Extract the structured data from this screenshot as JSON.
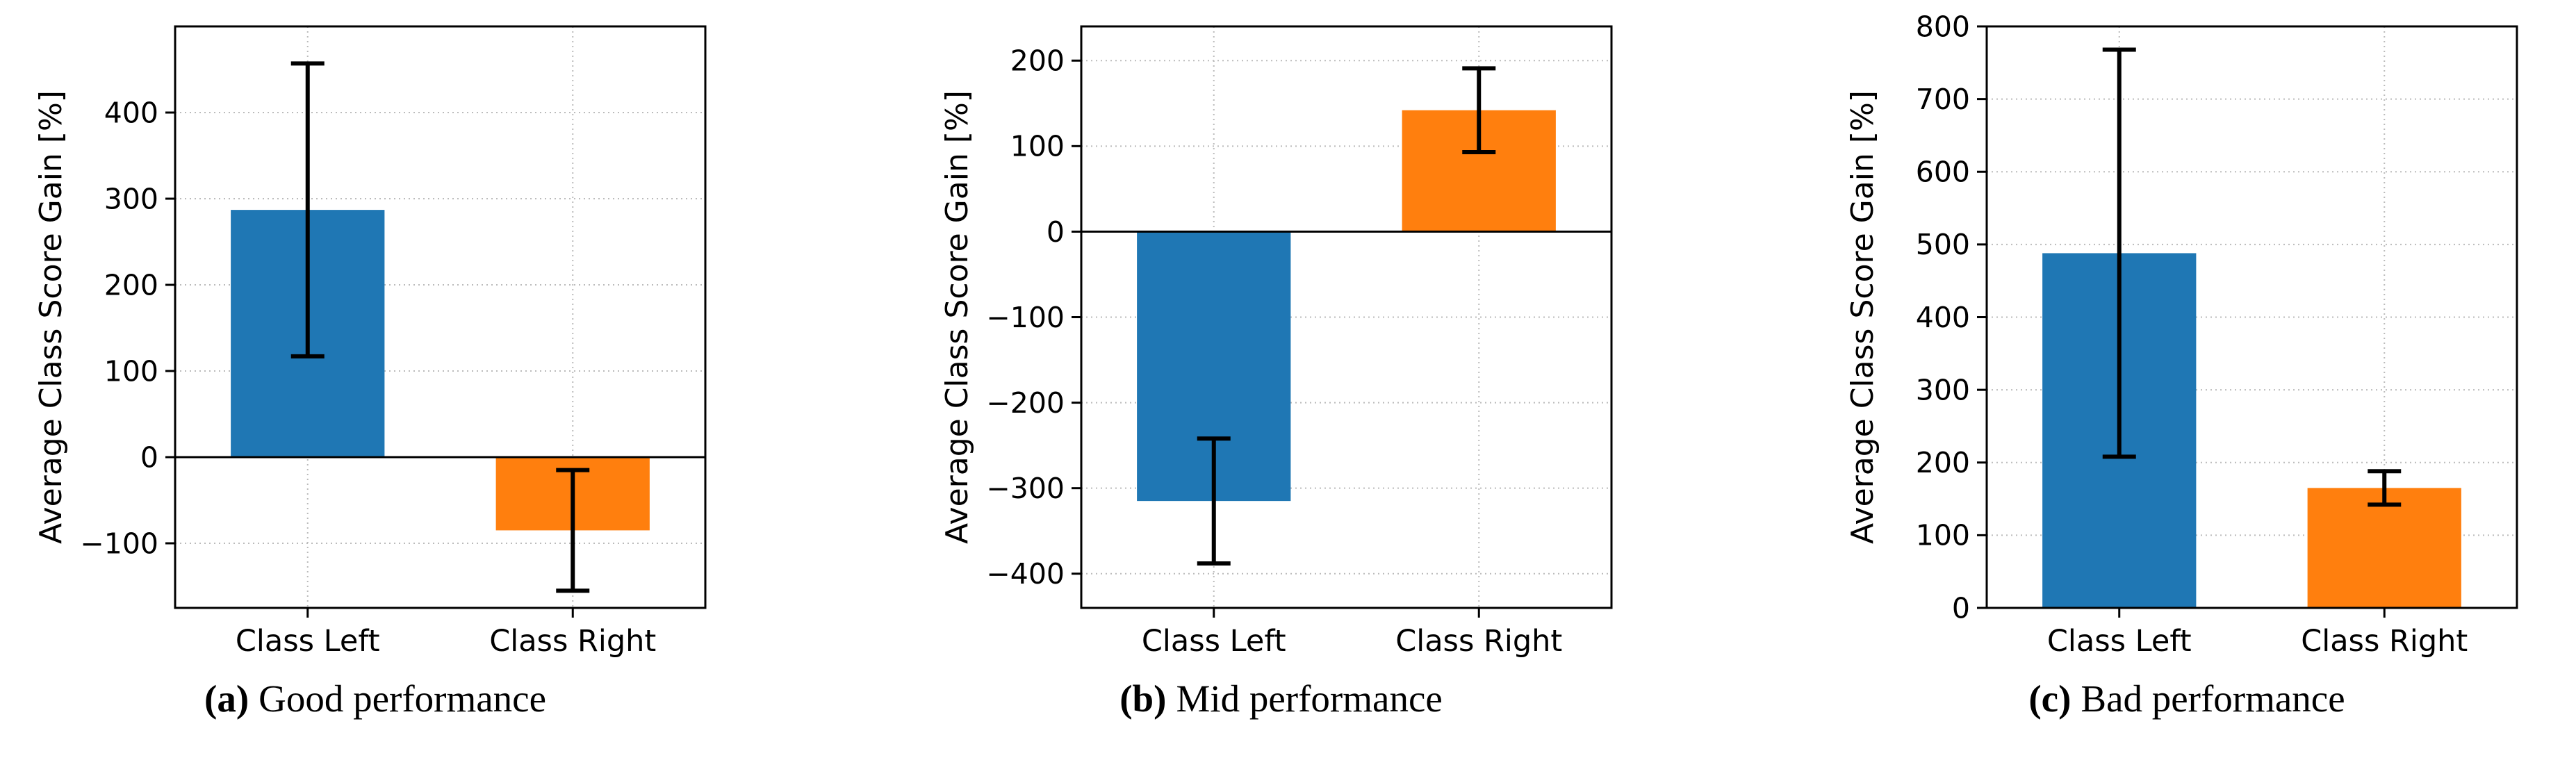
{
  "figure": {
    "ylabel": "Average Class Score Gain [%]"
  },
  "colors": {
    "bar_blue": "#1f77b4",
    "bar_orange": "#ff7f0e",
    "error_bar": "#000000",
    "grid": "#bbbbbb",
    "spine": "#000000",
    "background": "#ffffff"
  },
  "chart_data": [
    {
      "type": "bar",
      "panel_label": "(a)",
      "caption": "Good performance",
      "ylabel": "Average Class Score Gain [%]",
      "categories": [
        "Class Left",
        "Class Right"
      ],
      "values": [
        287,
        -85
      ],
      "errors": [
        170,
        70
      ],
      "yticks": [
        -100,
        0,
        100,
        200,
        300,
        400
      ],
      "ylim": [
        -175,
        500
      ],
      "bar_colors": [
        "#1f77b4",
        "#ff7f0e"
      ],
      "zero_line": true,
      "grid": true,
      "legend": "none"
    },
    {
      "type": "bar",
      "panel_label": "(b)",
      "caption": "Mid performance",
      "ylabel": "Average Class Score Gain [%]",
      "categories": [
        "Class Left",
        "Class Right"
      ],
      "values": [
        -315,
        142
      ],
      "errors": [
        73,
        49
      ],
      "yticks": [
        -400,
        -300,
        -200,
        -100,
        0,
        100,
        200
      ],
      "ylim": [
        -440,
        240
      ],
      "bar_colors": [
        "#1f77b4",
        "#ff7f0e"
      ],
      "zero_line": true,
      "grid": true,
      "legend": "none"
    },
    {
      "type": "bar",
      "panel_label": "(c)",
      "caption": "Bad performance",
      "ylabel": "Average Class Score Gain [%]",
      "categories": [
        "Class Left",
        "Class Right"
      ],
      "values": [
        488,
        165
      ],
      "errors": [
        280,
        23
      ],
      "yticks": [
        0,
        100,
        200,
        300,
        400,
        500,
        600,
        700,
        800
      ],
      "ylim": [
        0,
        800
      ],
      "bar_colors": [
        "#1f77b4",
        "#ff7f0e"
      ],
      "zero_line": false,
      "grid": true,
      "legend": "none"
    }
  ]
}
